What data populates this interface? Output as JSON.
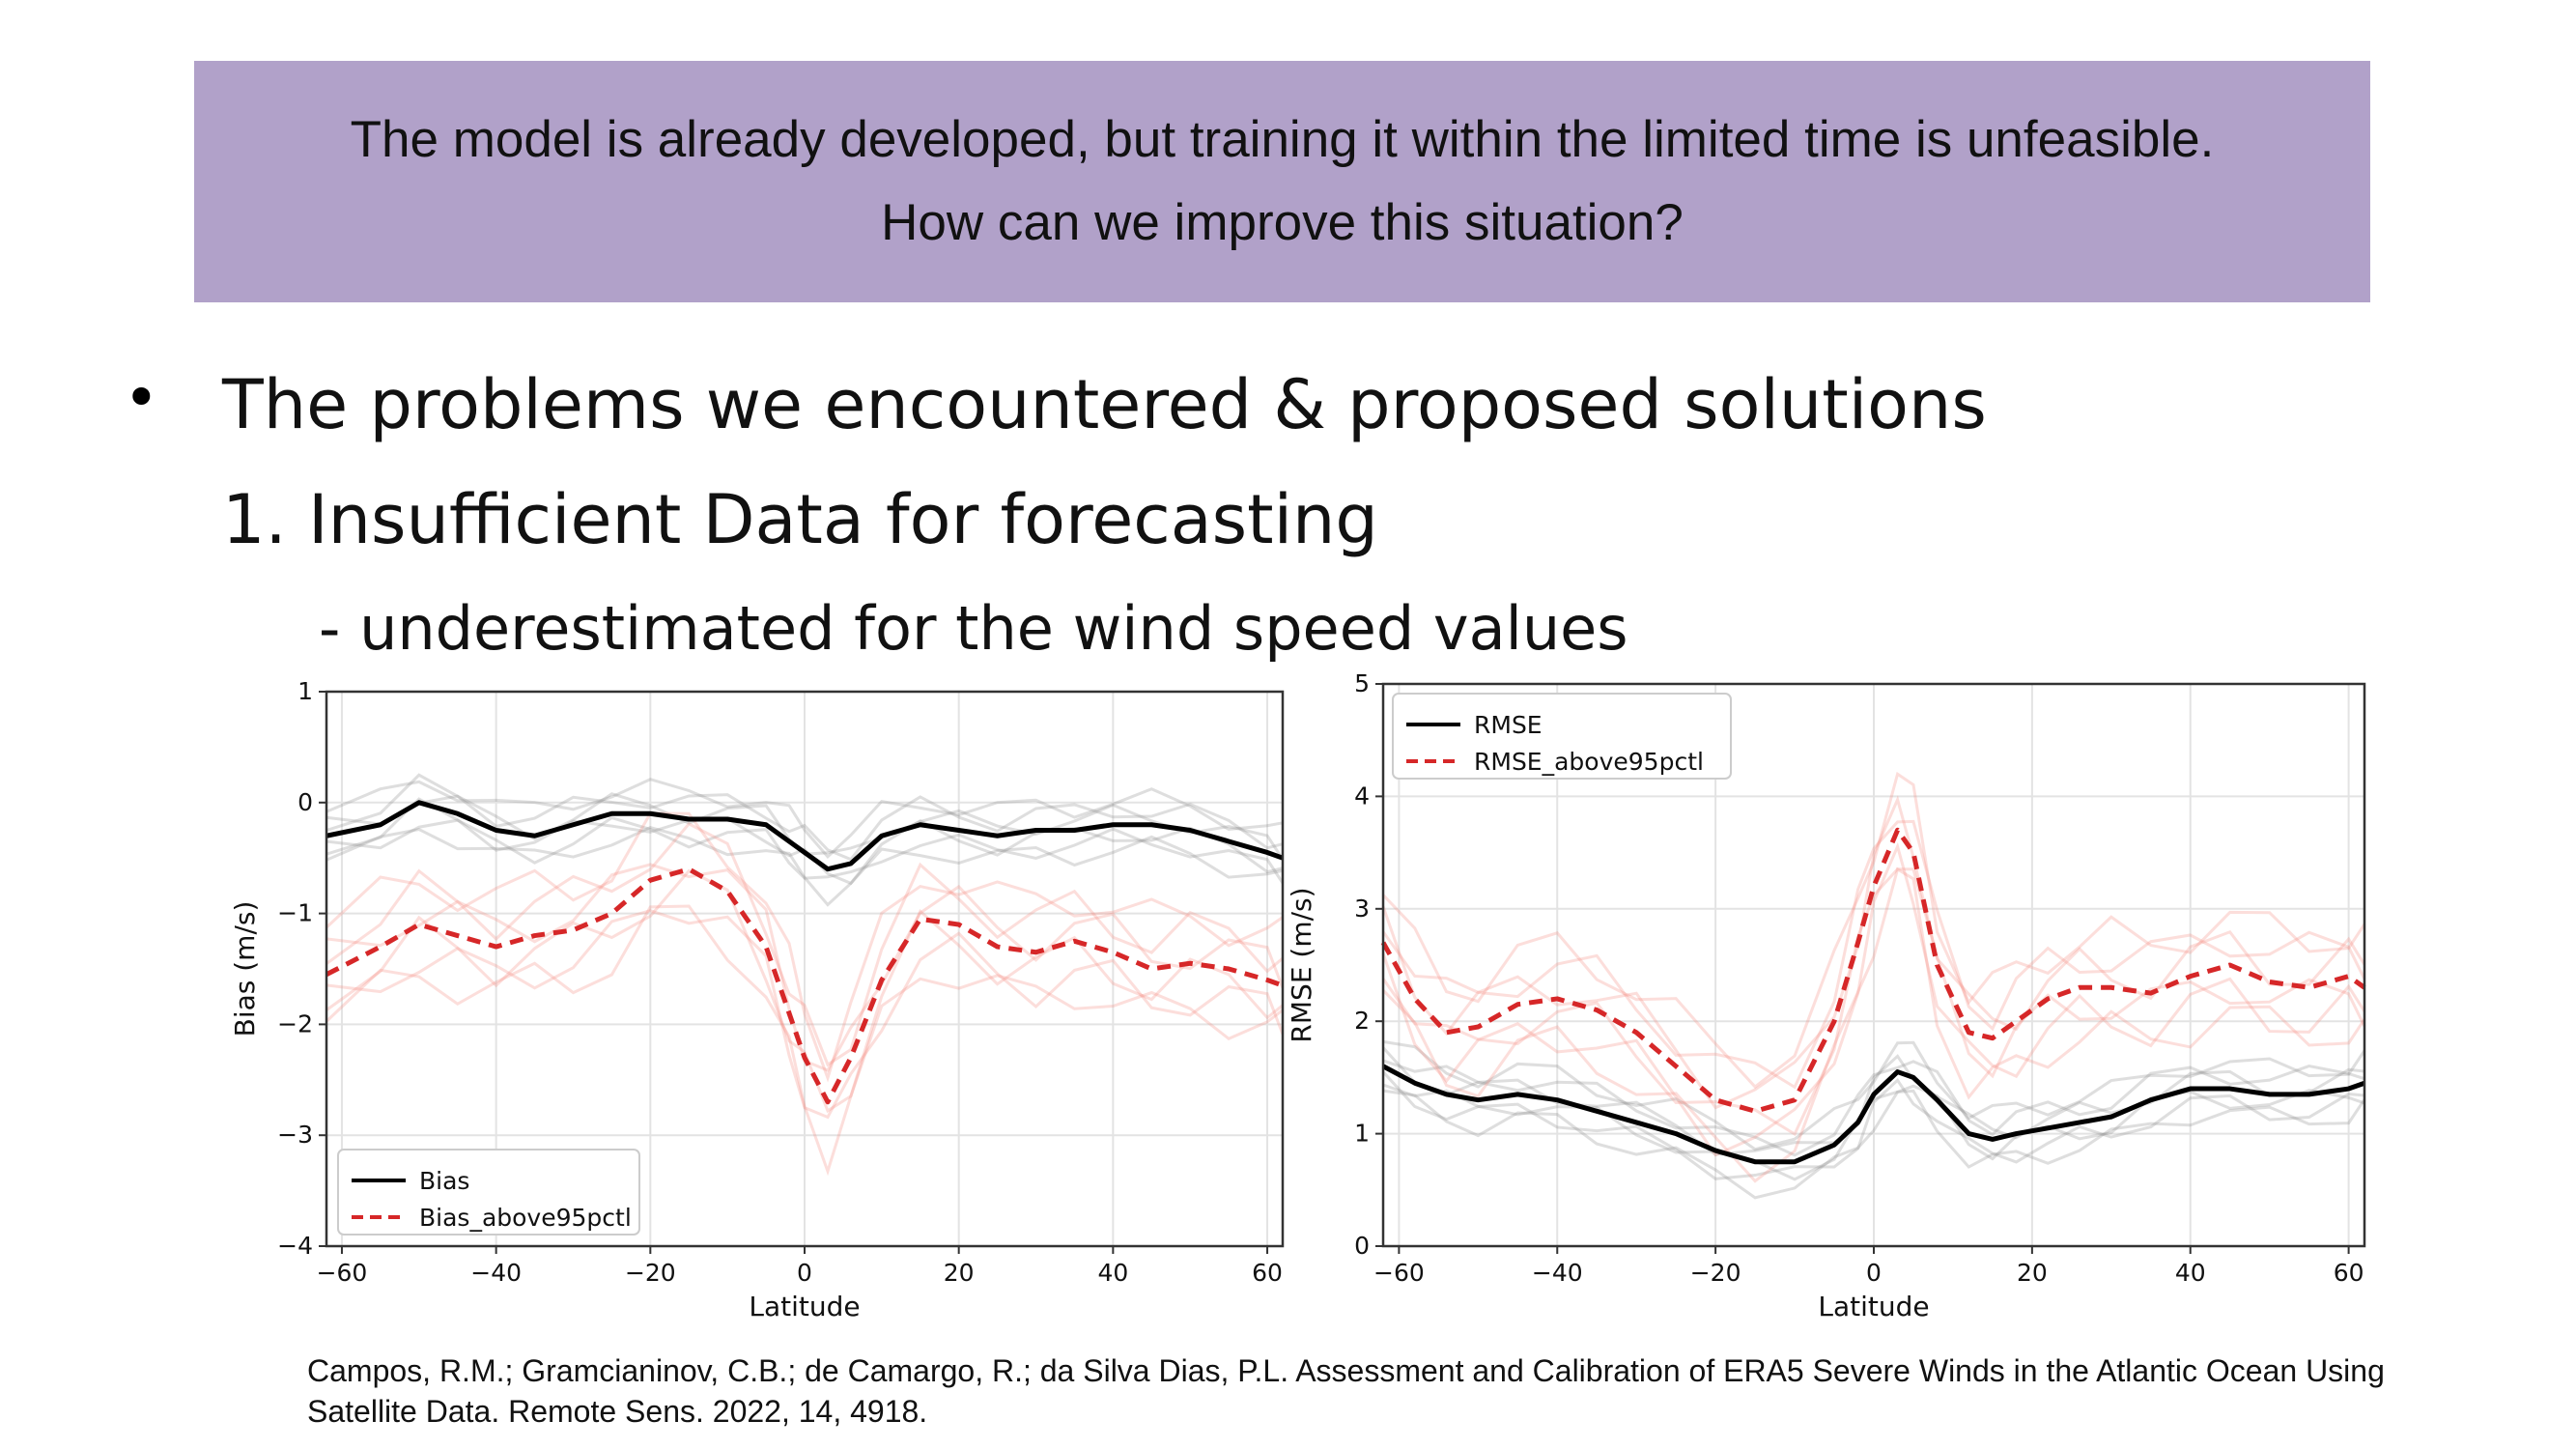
{
  "banner": {
    "line1": "The model is already developed, but training it within the limited time is unfeasible.",
    "line2": "How can we improve this situation?",
    "background": "#b1a1c9"
  },
  "content": {
    "bullet": "•",
    "heading": "The problems we encountered & proposed solutions",
    "subheading": "1. Insufficient Data for forecasting",
    "detail": "- underestimated for the wind speed values"
  },
  "chart_data": [
    {
      "type": "line",
      "xlabel": "Latitude",
      "ylabel": "Bias (m/s)",
      "xlim": [
        -62,
        62
      ],
      "ylim": [
        -4,
        1
      ],
      "xticks": [
        -60,
        -40,
        -20,
        0,
        20,
        40,
        60
      ],
      "yticks": [
        -4,
        -3,
        -2,
        -1,
        0,
        1
      ],
      "grid": true,
      "legend_position": "bottom-left",
      "x": [
        -62,
        -55,
        -50,
        -45,
        -40,
        -35,
        -30,
        -25,
        -20,
        -15,
        -10,
        -5,
        -2,
        0,
        3,
        6,
        10,
        15,
        20,
        25,
        30,
        35,
        40,
        45,
        50,
        55,
        60,
        62
      ],
      "series": [
        {
          "name": "Bias",
          "style": "solid",
          "color": "#000000",
          "values": [
            -0.3,
            -0.2,
            0.0,
            -0.1,
            -0.25,
            -0.3,
            -0.2,
            -0.1,
            -0.1,
            -0.15,
            -0.15,
            -0.2,
            -0.35,
            -0.45,
            -0.6,
            -0.55,
            -0.3,
            -0.2,
            -0.25,
            -0.3,
            -0.25,
            -0.25,
            -0.2,
            -0.2,
            -0.25,
            -0.35,
            -0.45,
            -0.5
          ]
        },
        {
          "name": "Bias_above95pctl",
          "style": "dashed",
          "color": "#d62728",
          "values": [
            -1.55,
            -1.3,
            -1.1,
            -1.2,
            -1.3,
            -1.2,
            -1.15,
            -1.0,
            -0.7,
            -0.6,
            -0.8,
            -1.3,
            -1.9,
            -2.3,
            -2.7,
            -2.3,
            -1.6,
            -1.05,
            -1.1,
            -1.3,
            -1.35,
            -1.25,
            -1.35,
            -1.5,
            -1.45,
            -1.5,
            -1.6,
            -1.65
          ]
        }
      ]
    },
    {
      "type": "line",
      "xlabel": "Latitude",
      "ylabel": "RMSE (m/s)",
      "xlim": [
        -62,
        62
      ],
      "ylim": [
        0,
        5
      ],
      "xticks": [
        -60,
        -40,
        -20,
        0,
        20,
        40,
        60
      ],
      "yticks": [
        0,
        1,
        2,
        3,
        4,
        5
      ],
      "grid": true,
      "legend_position": "top-left",
      "x": [
        -62,
        -58,
        -54,
        -50,
        -45,
        -40,
        -35,
        -30,
        -25,
        -20,
        -15,
        -10,
        -5,
        -2,
        0,
        3,
        5,
        8,
        12,
        15,
        18,
        22,
        26,
        30,
        35,
        40,
        45,
        50,
        55,
        60,
        62
      ],
      "series": [
        {
          "name": "RMSE",
          "style": "solid",
          "color": "#000000",
          "values": [
            1.6,
            1.45,
            1.35,
            1.3,
            1.35,
            1.3,
            1.2,
            1.1,
            1.0,
            0.85,
            0.75,
            0.75,
            0.9,
            1.1,
            1.35,
            1.55,
            1.5,
            1.3,
            1.0,
            0.95,
            1.0,
            1.05,
            1.1,
            1.15,
            1.3,
            1.4,
            1.4,
            1.35,
            1.35,
            1.4,
            1.45
          ]
        },
        {
          "name": "RMSE_above95pctl",
          "style": "dashed",
          "color": "#d62728",
          "values": [
            2.7,
            2.2,
            1.9,
            1.95,
            2.15,
            2.2,
            2.1,
            1.9,
            1.6,
            1.3,
            1.2,
            1.3,
            2.0,
            2.7,
            3.2,
            3.7,
            3.5,
            2.5,
            1.9,
            1.85,
            2.0,
            2.2,
            2.3,
            2.3,
            2.25,
            2.4,
            2.5,
            2.35,
            2.3,
            2.4,
            2.3
          ]
        }
      ]
    }
  ],
  "citation": {
    "text": "Campos, R.M.; Gramcianinov, C.B.; de Camargo, R.; da Silva Dias, P.L. Assessment and Calibration of ERA5 Severe Winds in the Atlantic Ocean Using Satellite Data. Remote Sens. 2022, 14, 4918."
  }
}
